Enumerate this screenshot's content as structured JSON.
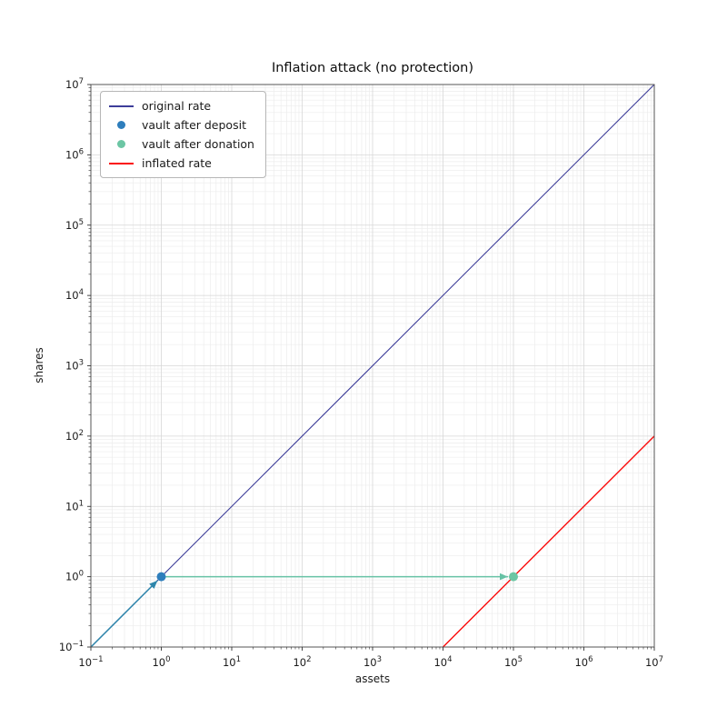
{
  "chart_data": {
    "type": "line",
    "title": "Inflation attack (no protection)",
    "xlabel": "assets",
    "ylabel": "shares",
    "xscale": "log",
    "yscale": "log",
    "xlim": [
      0.1,
      10000000
    ],
    "ylim": [
      0.1,
      10000000
    ],
    "x_tick_exponents": [
      -1,
      0,
      1,
      2,
      3,
      4,
      5,
      6,
      7
    ],
    "y_tick_exponents": [
      -1,
      0,
      1,
      2,
      3,
      4,
      5,
      6,
      7
    ],
    "grid": "both",
    "legend_position": "upper left",
    "colors": {
      "background": "#ffffff",
      "grid_major": "#d7d7d7",
      "grid_minor": "#ececec",
      "spine": "#565656",
      "tick": "#333333",
      "text": "#1a1a1a"
    },
    "series": [
      {
        "name": "original rate",
        "type": "line",
        "color": "#3d3d99",
        "width": 1.1,
        "points": [
          [
            0.1,
            0.1
          ],
          [
            10000000,
            10000000
          ]
        ],
        "relation": "shares = assets"
      },
      {
        "name": "deposit step",
        "type": "arrow",
        "color": "#2e86ab",
        "width": 1.5,
        "from": [
          0.1,
          0.1
        ],
        "to": [
          1,
          1
        ]
      },
      {
        "name": "donation step",
        "type": "arrow",
        "color": "#66c2a5",
        "width": 1.5,
        "from": [
          1,
          1
        ],
        "to": [
          100000,
          1
        ]
      },
      {
        "name": "inflated rate",
        "type": "line",
        "color": "#fb0d0d",
        "width": 1.4,
        "points": [
          [
            10000,
            0.1
          ],
          [
            10000000,
            100
          ]
        ],
        "relation": "shares = assets / 100000"
      },
      {
        "name": "vault after deposit",
        "type": "scatter",
        "color": "#2e7ebc",
        "size": 5,
        "points": [
          [
            1,
            1
          ]
        ]
      },
      {
        "name": "vault after donation",
        "type": "scatter",
        "color": "#6cc6a4",
        "size": 5,
        "points": [
          [
            100000,
            1
          ]
        ]
      }
    ],
    "legend": [
      {
        "label": "original rate",
        "marker": "line",
        "color": "#3d3d99"
      },
      {
        "label": "vault after deposit",
        "marker": "dot",
        "color": "#2e7ebc"
      },
      {
        "label": "vault after donation",
        "marker": "dot",
        "color": "#6cc6a4"
      },
      {
        "label": "inflated rate",
        "marker": "line",
        "color": "#fb0d0d"
      }
    ]
  }
}
